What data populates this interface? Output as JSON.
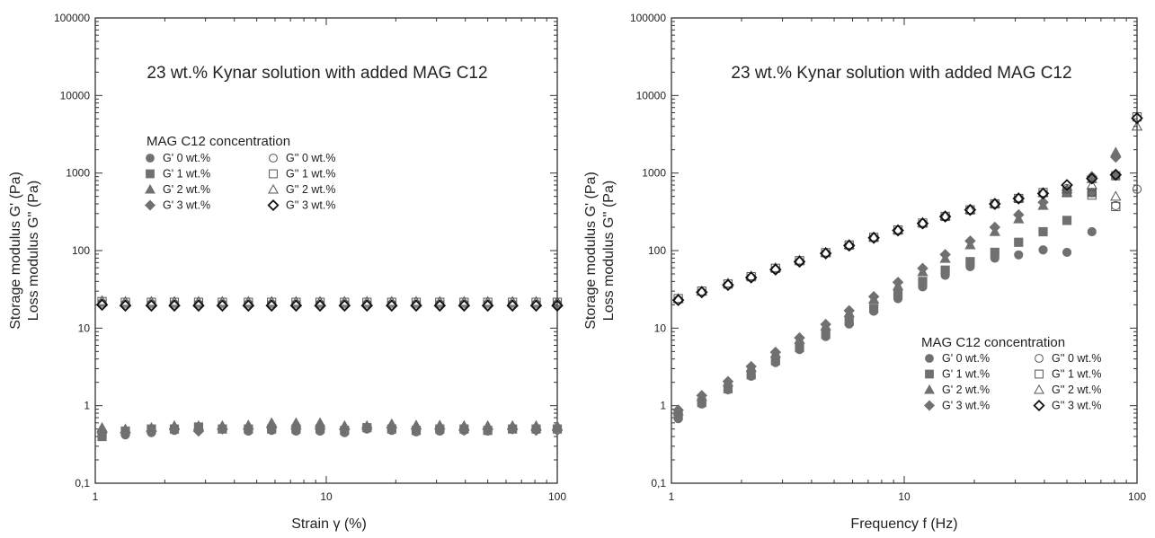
{
  "colors": {
    "filled": "#707070",
    "open": "#555555",
    "open_dark": "#111111",
    "frame": "#333333"
  },
  "chart_data": [
    {
      "type": "scatter",
      "title": "23 wt.% Kynar solution with added MAG C12",
      "xlabel": "Strain γ (%)",
      "ylabel_line1": "Storage modulus G' (Pa)",
      "ylabel_line2": "Loss modulus G'' (Pa)",
      "xscale": "log",
      "yscale": "log",
      "xlim": [
        1,
        100
      ],
      "ylim": [
        0.1,
        100000
      ],
      "xticks": [
        "1",
        "10",
        "100"
      ],
      "yticks": [
        "0,1",
        "1",
        "10",
        "100",
        "1000",
        "10000",
        "100000"
      ],
      "legend_title": "MAG C12 concentration",
      "legend_position": "upper-left",
      "x": [
        1.07,
        1.35,
        1.75,
        2.2,
        2.8,
        3.55,
        4.6,
        5.8,
        7.4,
        9.4,
        12,
        15,
        19.2,
        24.5,
        31,
        39.5,
        50,
        64,
        81,
        100
      ],
      "series": [
        {
          "name": "G' 0 wt.%",
          "marker": "circle",
          "fill": "filled",
          "y": [
            0.43,
            0.42,
            0.45,
            0.48,
            0.5,
            0.5,
            0.47,
            0.48,
            0.47,
            0.47,
            0.45,
            0.5,
            0.48,
            0.46,
            0.47,
            0.48,
            0.47,
            0.5,
            0.5,
            0.5
          ]
        },
        {
          "name": "G' 1 wt.%",
          "marker": "square",
          "fill": "filled",
          "y": [
            0.4,
            0.47,
            0.5,
            0.5,
            0.53,
            0.5,
            0.5,
            0.5,
            0.5,
            0.5,
            0.48,
            0.52,
            0.5,
            0.48,
            0.5,
            0.5,
            0.48,
            0.5,
            0.5,
            0.5
          ]
        },
        {
          "name": "G' 2 wt.%",
          "marker": "triangle",
          "fill": "filled",
          "y": [
            0.52,
            0.5,
            0.52,
            0.55,
            0.55,
            0.55,
            0.56,
            0.6,
            0.6,
            0.6,
            0.55,
            0.55,
            0.58,
            0.56,
            0.56,
            0.55,
            0.55,
            0.55,
            0.55,
            0.55
          ]
        },
        {
          "name": "G' 3 wt.%",
          "marker": "diamond",
          "fill": "filled",
          "y": [
            0.45,
            0.45,
            0.47,
            0.5,
            0.47,
            0.5,
            0.5,
            0.52,
            0.5,
            0.5,
            0.5,
            0.52,
            0.52,
            0.5,
            0.5,
            0.48,
            0.5,
            0.5,
            0.48,
            0.48
          ]
        },
        {
          "name": "G'' 0 wt.%",
          "marker": "circle",
          "fill": "open",
          "y": [
            21,
            20.5,
            20.5,
            20.5,
            20.5,
            20.5,
            20.5,
            20.5,
            20.5,
            20.5,
            20.5,
            20.5,
            20.5,
            20.5,
            20.5,
            20.5,
            20.5,
            20.5,
            20.5,
            20.5
          ]
        },
        {
          "name": "G'' 1 wt.%",
          "marker": "square",
          "fill": "open",
          "y": [
            22,
            21.5,
            21.5,
            21.5,
            21.5,
            21.5,
            21.5,
            21.5,
            21.5,
            21.5,
            21.5,
            21.5,
            21.5,
            21.5,
            21.5,
            21.5,
            21.5,
            21.5,
            21.5,
            21.5
          ]
        },
        {
          "name": "G'' 2 wt.%",
          "marker": "triangle",
          "fill": "open",
          "y": [
            22.5,
            22,
            22,
            22,
            22,
            22,
            22,
            22,
            22,
            22,
            22,
            22,
            22,
            22,
            22,
            22,
            22,
            22,
            22,
            22
          ]
        },
        {
          "name": "G'' 3 wt.%",
          "marker": "diamond",
          "fill": "open_dark",
          "y": [
            20,
            19.5,
            19.5,
            19.5,
            19.5,
            19.5,
            19.5,
            19.5,
            19.5,
            19.5,
            19.5,
            19.5,
            19.5,
            19.5,
            19.5,
            19.5,
            19.5,
            19.5,
            19.5,
            19.5
          ]
        }
      ]
    },
    {
      "type": "scatter",
      "title": "23 wt.% Kynar solution with added MAG C12",
      "xlabel": "Frequency f (Hz)",
      "ylabel_line1": "Storage modulus G' (Pa)",
      "ylabel_line2": "Loss modulus G'' (Pa)",
      "xscale": "log",
      "yscale": "log",
      "xlim": [
        1,
        100
      ],
      "ylim": [
        0.1,
        100000
      ],
      "xticks": [
        "1",
        "10",
        "100"
      ],
      "yticks": [
        "0,1",
        "1",
        "10",
        "100",
        "1000",
        "10000",
        "100000"
      ],
      "legend_title": "MAG C12 concentration",
      "legend_position": "lower-right",
      "x": [
        1.07,
        1.35,
        1.75,
        2.2,
        2.8,
        3.55,
        4.6,
        5.8,
        7.4,
        9.4,
        12,
        15,
        19.2,
        24.5,
        31,
        39.5,
        50,
        64,
        81,
        100
      ],
      "series": [
        {
          "name": "G' 0 wt.%",
          "marker": "circle",
          "fill": "filled",
          "y": [
            0.68,
            1.05,
            1.6,
            2.4,
            3.6,
            5.3,
            7.8,
            11.3,
            16.5,
            24,
            34,
            48,
            62,
            80,
            88,
            102,
            95,
            175,
            null,
            null
          ]
        },
        {
          "name": "G' 1 wt.%",
          "marker": "square",
          "fill": "filled",
          "y": [
            0.75,
            1.1,
            1.65,
            2.5,
            3.8,
            5.6,
            8.3,
            12.2,
            18,
            27,
            40,
            56,
            72,
            95,
            128,
            175,
            245,
            560,
            920,
            null
          ]
        },
        {
          "name": "G' 2 wt.%",
          "marker": "triangle",
          "fill": "filled",
          "y": [
            0.85,
            1.3,
            2.0,
            3.1,
            4.7,
            7.1,
            10.6,
            15.7,
            23.5,
            35,
            53,
            79,
            118,
            175,
            255,
            380,
            560,
            840,
            1850,
            null
          ]
        },
        {
          "name": "G' 3 wt.%",
          "marker": "diamond",
          "fill": "filled",
          "y": [
            0.88,
            1.35,
            2.05,
            3.2,
            4.9,
            7.5,
            11.2,
            16.8,
            25.5,
            39,
            59,
            89,
            133,
            200,
            290,
            420,
            600,
            900,
            1600,
            null
          ]
        },
        {
          "name": "G'' 0 wt.%",
          "marker": "circle",
          "fill": "open",
          "y": [
            23,
            29,
            36,
            45,
            57,
            72,
            92,
            115,
            145,
            180,
            222,
            272,
            330,
            395,
            465,
            540,
            630,
            560,
            380,
            620
          ]
        },
        {
          "name": "G'' 1 wt.%",
          "marker": "square",
          "fill": "open",
          "y": [
            24,
            30,
            37,
            46,
            59,
            74,
            94,
            118,
            148,
            184,
            226,
            276,
            335,
            400,
            470,
            560,
            560,
            520,
            370,
            5300
          ]
        },
        {
          "name": "G'' 2 wt.%",
          "marker": "triangle",
          "fill": "open",
          "y": [
            24,
            30,
            38,
            47,
            60,
            75,
            95,
            120,
            150,
            186,
            230,
            280,
            338,
            405,
            480,
            560,
            620,
            700,
            500,
            4000
          ]
        },
        {
          "name": "G'' 3 wt.%",
          "marker": "diamond",
          "fill": "open_dark",
          "y": [
            23,
            29,
            36,
            45,
            57,
            72,
            92,
            116,
            146,
            182,
            224,
            275,
            335,
            400,
            470,
            545,
            700,
            850,
            950,
            5100
          ]
        }
      ]
    }
  ]
}
